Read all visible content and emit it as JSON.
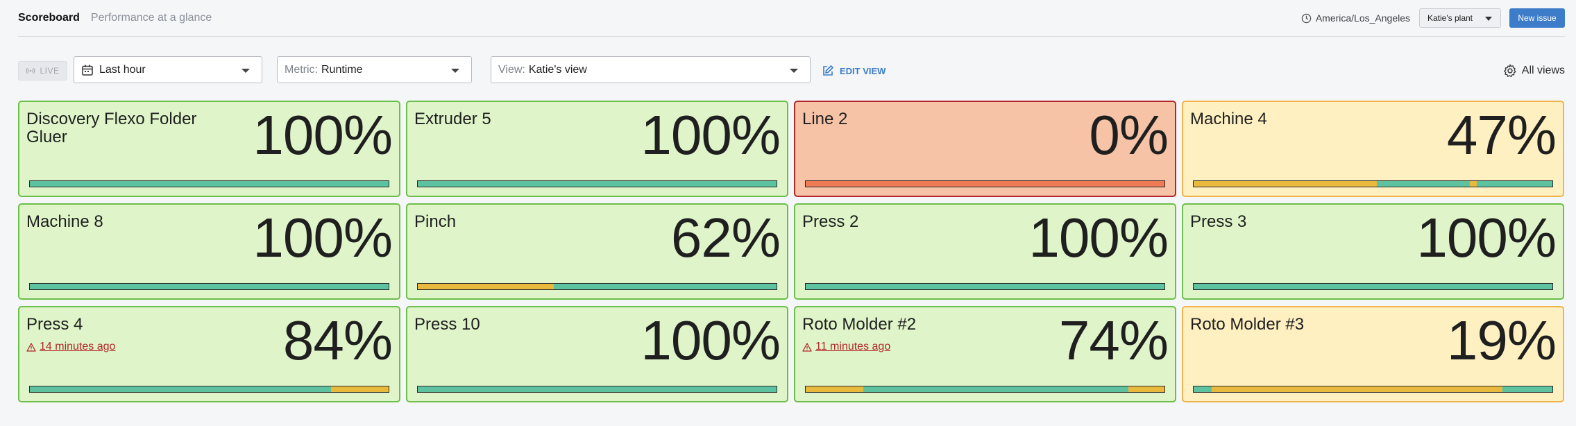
{
  "header": {
    "title": "Scoreboard",
    "subtitle": "Performance at a glance",
    "timezone": "America/Los_Angeles",
    "plant": "Katie's plant",
    "new_issue": "New issue"
  },
  "toolbar": {
    "live": "LIVE",
    "time_range": "Last hour",
    "metric_prefix": "Metric:",
    "metric_value": "Runtime",
    "view_prefix": "View:",
    "view_value": "Katie's view",
    "edit_view": "EDIT VIEW",
    "all_views": "All views"
  },
  "colors": {
    "running": "#5cc2a0",
    "idle": "#e8b93c",
    "down": "#ee7b55",
    "tile_green_bg": "#dff5c9",
    "tile_red_bg": "#f6c3a7",
    "tile_orange_bg": "#fff0c2",
    "accent": "#3d7cc9"
  },
  "tiles": [
    {
      "name": "Discovery Flexo Folder Gluer",
      "value": "100%",
      "status": "green",
      "alert": "",
      "segments": [
        [
          "running",
          1
        ]
      ]
    },
    {
      "name": "Extruder 5",
      "value": "100%",
      "status": "green",
      "alert": "",
      "segments": [
        [
          "running",
          1
        ]
      ]
    },
    {
      "name": "Line 2",
      "value": "0%",
      "status": "red",
      "alert": "",
      "segments": [
        [
          "down",
          1
        ]
      ]
    },
    {
      "name": "Machine 4",
      "value": "47%",
      "status": "orange",
      "alert": "",
      "segments": [
        [
          "idle",
          0.51
        ],
        [
          "running",
          0.26
        ],
        [
          "idle",
          0.02
        ],
        [
          "running",
          0.21
        ]
      ]
    },
    {
      "name": "Machine 8",
      "value": "100%",
      "status": "green",
      "alert": "",
      "segments": [
        [
          "running",
          1
        ]
      ]
    },
    {
      "name": "Pinch",
      "value": "62%",
      "status": "green",
      "alert": "",
      "segments": [
        [
          "idle",
          0.38
        ],
        [
          "running",
          0.62
        ]
      ]
    },
    {
      "name": "Press 2",
      "value": "100%",
      "status": "green",
      "alert": "",
      "segments": [
        [
          "running",
          1
        ]
      ]
    },
    {
      "name": "Press 3",
      "value": "100%",
      "status": "green",
      "alert": "",
      "segments": [
        [
          "running",
          1
        ]
      ]
    },
    {
      "name": "Press 4",
      "value": "84%",
      "status": "green",
      "alert": "14 minutes ago",
      "segments": [
        [
          "running",
          0.84
        ],
        [
          "idle",
          0.16
        ]
      ]
    },
    {
      "name": "Press 10",
      "value": "100%",
      "status": "green",
      "alert": "",
      "segments": [
        [
          "running",
          1
        ]
      ]
    },
    {
      "name": "Roto Molder #2",
      "value": "74%",
      "status": "green",
      "alert": "11 minutes ago",
      "segments": [
        [
          "idle",
          0.16
        ],
        [
          "running",
          0.74
        ],
        [
          "idle",
          0.1
        ]
      ]
    },
    {
      "name": "Roto Molder #3",
      "value": "19%",
      "status": "orange",
      "alert": "",
      "segments": [
        [
          "running",
          0.05
        ],
        [
          "idle",
          0.81
        ],
        [
          "running",
          0.14
        ]
      ]
    }
  ]
}
